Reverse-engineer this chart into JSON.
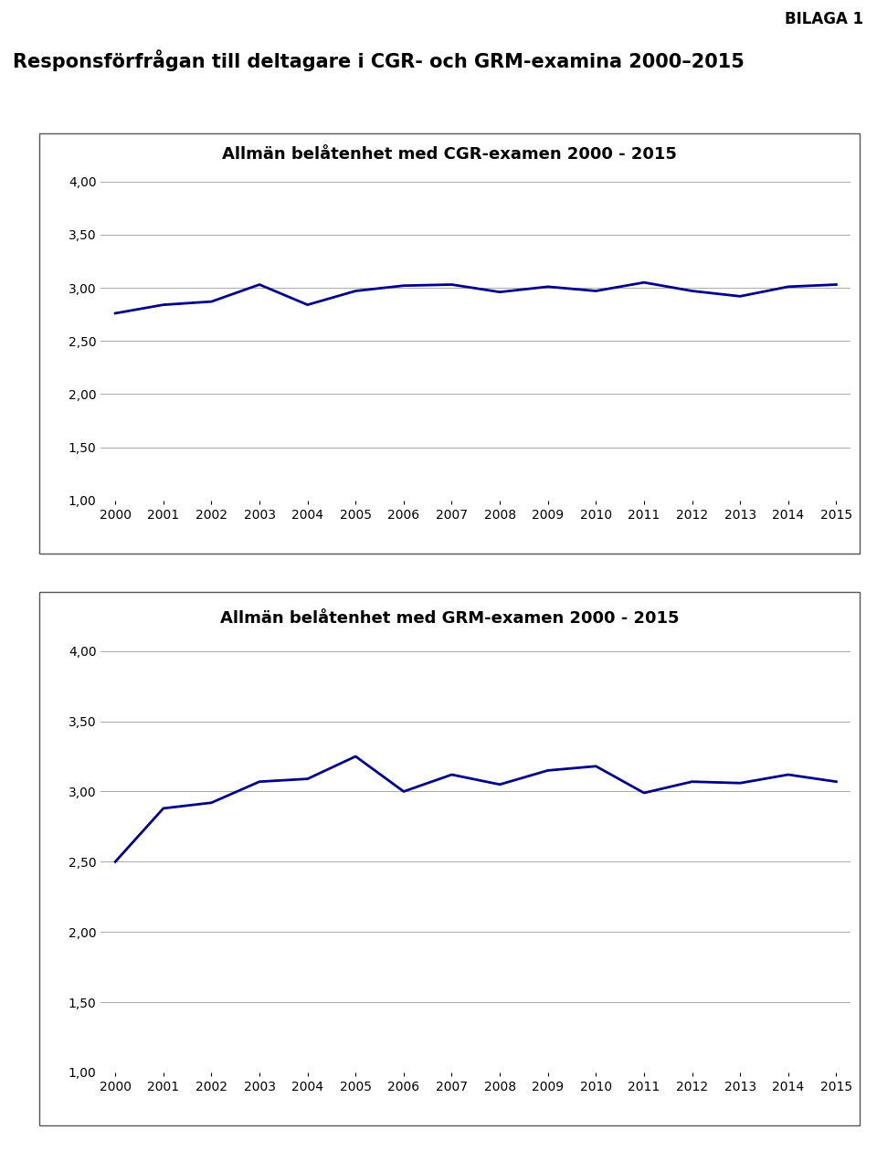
{
  "title_bilaga": "BILAGA 1",
  "main_title": "Responsförfrågan till deltagare i CGR- och GRM-examina 2000–2015",
  "chart1_title": "Allmän belåtenhet med CGR-examen 2000 - 2015",
  "chart2_title": "Allmän belåtenhet med GRM-examen 2000 - 2015",
  "years": [
    2000,
    2001,
    2002,
    2003,
    2004,
    2005,
    2006,
    2007,
    2008,
    2009,
    2010,
    2011,
    2012,
    2013,
    2014,
    2015
  ],
  "cgr_values": [
    2.76,
    2.84,
    2.87,
    3.03,
    2.84,
    2.97,
    3.02,
    3.03,
    2.96,
    3.01,
    2.97,
    3.05,
    2.97,
    2.92,
    3.01,
    3.03
  ],
  "grm_values": [
    2.5,
    2.88,
    2.92,
    3.07,
    3.09,
    3.25,
    3.0,
    3.12,
    3.05,
    3.15,
    3.18,
    2.99,
    3.07,
    3.06,
    3.12,
    3.07
  ],
  "line_color": "#00008B",
  "line_width": 2.0,
  "ylim": [
    1.0,
    4.0
  ],
  "yticks": [
    1.0,
    1.5,
    2.0,
    2.5,
    3.0,
    3.5,
    4.0
  ],
  "grid_color": "#AAAAAA",
  "background_color": "#FFFFFF",
  "border_color": "#555555",
  "title_fontsize": 13,
  "main_title_fontsize": 15,
  "bilaga_fontsize": 12,
  "tick_fontsize": 10,
  "chart_title_inside": true
}
